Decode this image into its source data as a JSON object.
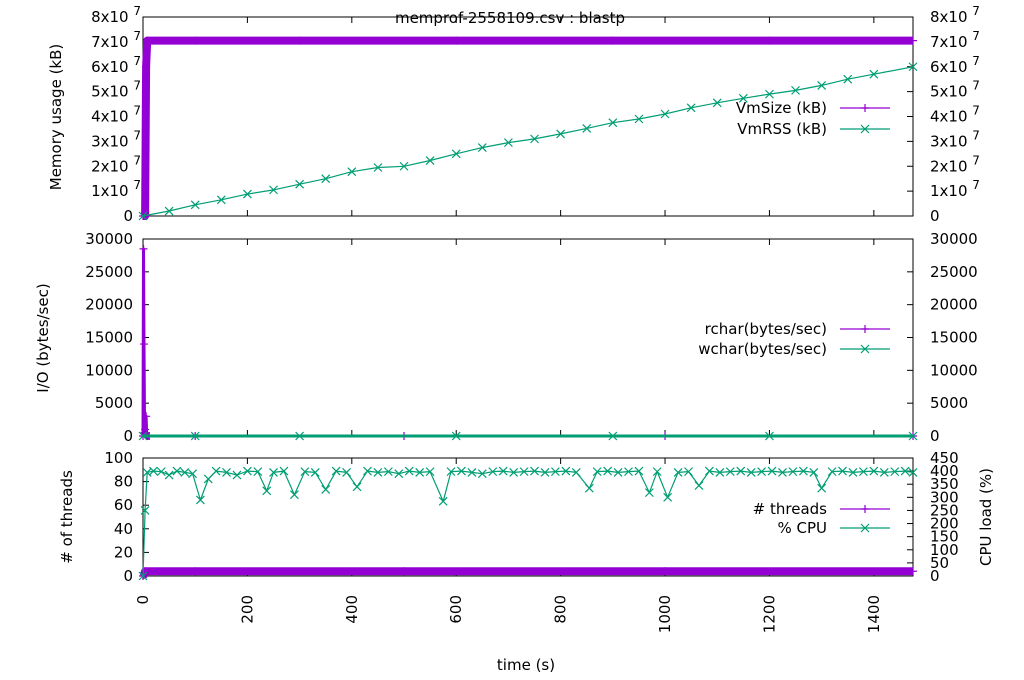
{
  "title": "memprof-2558109.csv : blastp",
  "chart_data": [
    {
      "type": "line",
      "ylabel": "Memory usage (kB)",
      "xlim": [
        0,
        1475
      ],
      "ylim": [
        0,
        80000000
      ],
      "yticks": [
        0,
        10000000,
        20000000,
        30000000,
        40000000,
        50000000,
        60000000,
        70000000,
        80000000
      ],
      "ytick_labels": [
        {
          "m": "0",
          "e": ""
        },
        {
          "m": "1x10",
          "e": "7"
        },
        {
          "m": "2x10",
          "e": "7"
        },
        {
          "m": "3x10",
          "e": "7"
        },
        {
          "m": "4x10",
          "e": "7"
        },
        {
          "m": "5x10",
          "e": "7"
        },
        {
          "m": "6x10",
          "e": "7"
        },
        {
          "m": "7x10",
          "e": "7"
        },
        {
          "m": "8x10",
          "e": "7"
        }
      ],
      "legend": "right",
      "series": [
        {
          "name": "VmSize (kB)",
          "color": "#9400d3",
          "marker": "plus",
          "x": [
            0,
            4,
            6,
            8,
            10,
            100,
            300,
            600,
            900,
            1200,
            1475
          ],
          "y": [
            0,
            0,
            60000000,
            70500000,
            70500000,
            70500000,
            70500000,
            70500000,
            70500000,
            70500000,
            70500000
          ]
        },
        {
          "name": "VmRSS (kB)",
          "color": "#009e73",
          "marker": "cross",
          "x": [
            0,
            50,
            100,
            150,
            200,
            250,
            300,
            350,
            400,
            450,
            500,
            550,
            600,
            650,
            700,
            750,
            800,
            850,
            900,
            950,
            1000,
            1050,
            1100,
            1150,
            1200,
            1250,
            1300,
            1350,
            1400,
            1475
          ],
          "y": [
            0,
            2000000,
            4500000,
            6500000,
            8800000,
            10500000,
            12800000,
            15000000,
            17800000,
            19500000,
            20000000,
            22300000,
            25000000,
            27500000,
            29500000,
            31000000,
            33000000,
            35200000,
            37500000,
            39000000,
            41000000,
            43500000,
            45500000,
            47300000,
            49000000,
            50500000,
            52500000,
            55000000,
            57000000,
            60000000
          ]
        }
      ]
    },
    {
      "type": "line",
      "ylabel": "I/O (bytes/sec)",
      "xlim": [
        0,
        1475
      ],
      "ylim": [
        0,
        30000
      ],
      "yticks": [
        0,
        5000,
        10000,
        15000,
        20000,
        25000,
        30000
      ],
      "legend": "right",
      "series": [
        {
          "name": "rchar(bytes/sec)",
          "color": "#9400d3",
          "marker": "plus",
          "x": [
            0,
            1,
            2,
            3,
            4,
            5,
            6,
            7,
            8,
            9,
            10,
            12,
            100,
            500,
            1000,
            1475
          ],
          "y": [
            0,
            28500,
            14000,
            500,
            1000,
            200,
            3000,
            100,
            0,
            0,
            0,
            0,
            0,
            0,
            0,
            0
          ]
        },
        {
          "name": "wchar(bytes/sec)",
          "color": "#009e73",
          "marker": "cross",
          "x": [
            0,
            100,
            300,
            600,
            900,
            1200,
            1475
          ],
          "y": [
            0,
            0,
            0,
            0,
            0,
            0,
            0
          ]
        }
      ]
    },
    {
      "type": "line",
      "xlabel": "time (s)",
      "ylabel": "# of threads",
      "y2label": "CPU load (%)",
      "xlim": [
        0,
        1475
      ],
      "ylim": [
        0,
        100
      ],
      "y2lim": [
        0,
        450
      ],
      "xticks": [
        0,
        200,
        400,
        600,
        800,
        1000,
        1200,
        1400
      ],
      "yticks": [
        0,
        20,
        40,
        60,
        80,
        100
      ],
      "y2ticks": [
        0,
        50,
        100,
        150,
        200,
        250,
        300,
        350,
        400,
        450
      ],
      "legend": "right",
      "series": [
        {
          "name": "# threads",
          "color": "#9400d3",
          "marker": "plus",
          "axis": "y",
          "x": [
            0,
            2,
            4,
            100,
            500,
            1000,
            1475
          ],
          "y": [
            0,
            1,
            4,
            4,
            4,
            4,
            4
          ]
        },
        {
          "name": "% CPU",
          "color": "#009e73",
          "marker": "cross",
          "axis": "y2",
          "x": [
            0,
            4,
            8,
            20,
            35,
            50,
            65,
            80,
            95,
            110,
            125,
            140,
            160,
            180,
            200,
            220,
            237,
            250,
            270,
            290,
            310,
            330,
            350,
            370,
            390,
            410,
            430,
            450,
            470,
            490,
            510,
            530,
            550,
            575,
            590,
            610,
            630,
            650,
            670,
            690,
            710,
            730,
            750,
            770,
            790,
            810,
            830,
            855,
            870,
            890,
            910,
            930,
            950,
            970,
            985,
            1005,
            1025,
            1045,
            1065,
            1085,
            1105,
            1125,
            1145,
            1165,
            1185,
            1205,
            1225,
            1245,
            1265,
            1285,
            1300,
            1320,
            1340,
            1360,
            1380,
            1400,
            1420,
            1440,
            1460,
            1475
          ],
          "y": [
            0,
            250,
            395,
            400,
            398,
            385,
            400,
            395,
            390,
            290,
            370,
            400,
            395,
            385,
            400,
            398,
            325,
            395,
            400,
            310,
            398,
            395,
            330,
            400,
            395,
            340,
            400,
            395,
            398,
            390,
            400,
            395,
            398,
            285,
            398,
            400,
            395,
            390,
            398,
            400,
            395,
            398,
            400,
            395,
            398,
            400,
            395,
            335,
            398,
            400,
            395,
            398,
            400,
            318,
            398,
            300,
            395,
            398,
            345,
            400,
            395,
            398,
            400,
            395,
            398,
            400,
            395,
            398,
            400,
            395,
            335,
            398,
            400,
            395,
            398,
            400,
            395,
            398,
            400,
            395
          ]
        }
      ]
    }
  ]
}
